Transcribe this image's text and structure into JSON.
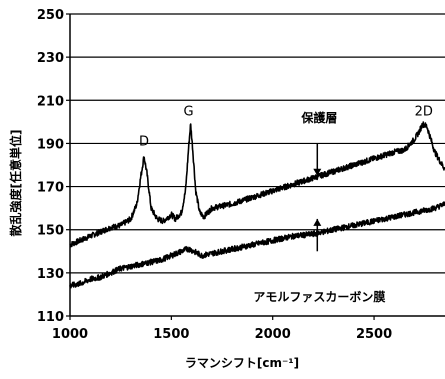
{
  "chart_data": {
    "type": "line",
    "title": "",
    "xlabel": "ラマンシフト[cm⁻¹]",
    "ylabel": "散乱強度[任意単位]",
    "xlim": [
      1000,
      2850
    ],
    "ylim": [
      110,
      250
    ],
    "xticks": [
      1000,
      1500,
      2000,
      2500
    ],
    "yticks": [
      110,
      130,
      150,
      170,
      190,
      210,
      230,
      250
    ],
    "grid": "horizontal",
    "legend": "none",
    "line_color": "#000000",
    "series": [
      {
        "x": [
          1000,
          1050,
          1100,
          1150,
          1200,
          1250,
          1300,
          1330,
          1350,
          1365,
          1380,
          1400,
          1430,
          1460,
          1500,
          1520,
          1550,
          1570,
          1585,
          1595,
          1605,
          1620,
          1640,
          1660,
          1700,
          1800,
          1900,
          2000,
          2100,
          2200,
          2300,
          2400,
          2500,
          2600,
          2650,
          2700,
          2720,
          2740,
          2760,
          2780,
          2800,
          2830,
          2850
        ],
        "values": [
          143,
          145,
          147,
          149,
          151,
          152,
          155,
          162,
          175,
          184,
          176,
          160,
          155,
          154,
          157,
          155,
          158,
          168,
          188,
          199,
          188,
          168,
          158,
          156,
          160,
          162,
          165,
          168,
          171,
          174,
          177,
          180,
          183,
          186,
          187,
          192,
          195,
          199,
          198,
          192,
          186,
          181,
          178
        ]
      },
      {
        "x": [
          1000,
          1050,
          1100,
          1150,
          1200,
          1250,
          1300,
          1350,
          1400,
          1450,
          1500,
          1550,
          1575,
          1590,
          1610,
          1630,
          1650,
          1700,
          1800,
          1900,
          2000,
          2100,
          2200,
          2300,
          2400,
          2500,
          2600,
          2700,
          2800,
          2850
        ],
        "values": [
          124,
          125,
          127,
          128,
          130,
          132,
          133,
          134,
          135,
          136,
          138,
          140,
          141,
          141,
          140,
          139,
          138,
          139,
          141,
          143,
          145,
          147,
          148,
          150,
          152,
          154,
          156,
          158,
          160,
          162
        ]
      }
    ],
    "annotations": [
      {
        "text": "D",
        "x": 1365,
        "y": 189
      },
      {
        "text": "G",
        "x": 1585,
        "y": 203
      },
      {
        "text": "2D",
        "x": 2745,
        "y": 203
      },
      {
        "text": "保護層",
        "x": 2230,
        "y": 200
      },
      {
        "text": "アモルファスカーボン膜",
        "x": 2230,
        "y": 117
      }
    ],
    "arrows": [
      {
        "x": 2220,
        "y_from": 190,
        "y_to": 175
      },
      {
        "x": 2220,
        "y_from": 140,
        "y_to": 155
      }
    ]
  }
}
